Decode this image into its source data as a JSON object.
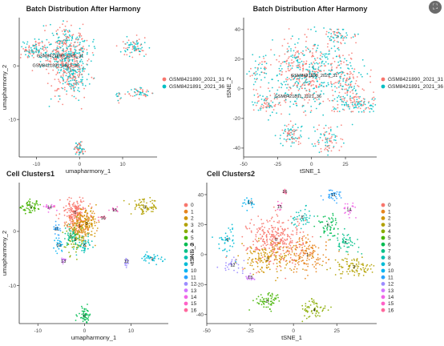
{
  "expand_button": {
    "icon": "expand-icon",
    "glyph": "⛶"
  },
  "chart_data": [
    {
      "type": "scatter",
      "title": "Batch Distribution After Harmony",
      "xlabel": "umapharmony_1",
      "ylabel": "umapharmony_2",
      "xlim": [
        -14,
        18
      ],
      "ylim": [
        -17,
        9
      ],
      "xticks": [
        -10,
        0,
        10
      ],
      "yticks": [
        0,
        -10
      ],
      "grid": false,
      "legend_position": "right",
      "annotations": [
        {
          "text": "GSM8421890_2021_31",
          "x": -4.5,
          "y": 1.6
        },
        {
          "text": "GSM8421891_2021_36",
          "x": -5.5,
          "y": -0.2
        }
      ],
      "series": [
        {
          "name": "GSM8421890_2021_31",
          "color": "#F8766D"
        },
        {
          "name": "GSM8421891_2021_36",
          "color": "#00BFC4"
        }
      ],
      "clusters": [
        {
          "x": -3,
          "y": 2.5,
          "sx": 2.6,
          "sy": 2.4,
          "n": 420
        },
        {
          "x": -2,
          "y": -2,
          "sx": 1.8,
          "sy": 2.0,
          "n": 200
        },
        {
          "x": -11,
          "y": 3,
          "sx": 1.6,
          "sy": 0.7,
          "n": 90
        },
        {
          "x": 13,
          "y": 3.5,
          "sx": 1.4,
          "sy": 0.9,
          "n": 80
        },
        {
          "x": 14,
          "y": -5,
          "sx": 1.5,
          "sy": 0.5,
          "n": 50
        },
        {
          "x": 9,
          "y": -5.5,
          "sx": 0.3,
          "sy": 0.6,
          "n": 14
        },
        {
          "x": 0,
          "y": -15.5,
          "sx": 0.7,
          "sy": 0.8,
          "n": 60
        }
      ]
    },
    {
      "type": "scatter",
      "title": "Batch Distribution After Harmony",
      "xlabel": "tSNE_1",
      "ylabel": "tSNE_2",
      "xlim": [
        -50,
        48
      ],
      "ylim": [
        -46,
        48
      ],
      "xticks": [
        -50,
        -25,
        0,
        25
      ],
      "yticks": [
        40,
        20,
        0,
        -20,
        -40
      ],
      "grid": false,
      "legend_position": "right",
      "annotations": [
        {
          "text": "GSM8421890_2021_31",
          "x": 2,
          "y": 8
        },
        {
          "text": "GSM8421891_2021_36",
          "x": -10,
          "y": -6
        }
      ],
      "series": [
        {
          "name": "GSM8421890_2021_31",
          "color": "#F8766D"
        },
        {
          "name": "GSM8421891_2021_36",
          "color": "#00BFC4"
        }
      ],
      "clusters": [
        {
          "x": -5,
          "y": 10,
          "sx": 13,
          "sy": 12,
          "n": 500
        },
        {
          "x": 25,
          "y": 5,
          "sx": 7,
          "sy": 10,
          "n": 180
        },
        {
          "x": 35,
          "y": -10,
          "sx": 7,
          "sy": 3,
          "n": 90
        },
        {
          "x": -35,
          "y": -10,
          "sx": 4,
          "sy": 3,
          "n": 60
        },
        {
          "x": -15,
          "y": -30,
          "sx": 5,
          "sy": 4,
          "n": 80
        },
        {
          "x": 12,
          "y": -35,
          "sx": 5,
          "sy": 5,
          "n": 80
        },
        {
          "x": 20,
          "y": 35,
          "sx": 5,
          "sy": 3,
          "n": 60
        },
        {
          "x": -40,
          "y": 10,
          "sx": 3,
          "sy": 5,
          "n": 40
        }
      ]
    },
    {
      "type": "scatter",
      "title": "Cell Clusters1",
      "xlabel": "umapharmony_1",
      "ylabel": "umapharmony_2",
      "xlim": [
        -14,
        18
      ],
      "ylim": [
        -17,
        9
      ],
      "xticks": [
        -10,
        0,
        10
      ],
      "yticks": [
        0,
        -10
      ],
      "grid": false,
      "legend_position": "right",
      "series": [
        {
          "name": "0",
          "color": "#F8766D",
          "x": -2,
          "y": 3.5,
          "sx": 1.6,
          "sy": 1.3,
          "n": 170,
          "label": "0"
        },
        {
          "name": "1",
          "color": "#E7851E",
          "x": -1,
          "y": 1,
          "sx": 1.5,
          "sy": 1.2,
          "n": 130,
          "label": "1"
        },
        {
          "name": "2",
          "color": "#D09400",
          "x": 0.5,
          "y": 1.5,
          "sx": 1.1,
          "sy": 1.2,
          "n": 100,
          "label": "2"
        },
        {
          "name": "3",
          "color": "#B2A100",
          "x": 13,
          "y": 4.5,
          "sx": 1.5,
          "sy": 0.7,
          "n": 70,
          "label": "3"
        },
        {
          "name": "4",
          "color": "#89AC00",
          "x": -2,
          "y": -1.5,
          "sx": 1.0,
          "sy": 1.4,
          "n": 70,
          "label": "4"
        },
        {
          "name": "5",
          "color": "#45B500",
          "x": -11.5,
          "y": 4.5,
          "sx": 1.3,
          "sy": 0.6,
          "n": 60,
          "label": "5"
        },
        {
          "name": "6",
          "color": "#00BC51",
          "x": 0,
          "y": -15.5,
          "sx": 0.7,
          "sy": 0.8,
          "n": 55,
          "label": "6"
        },
        {
          "name": "7",
          "color": "#00C087",
          "x": -3,
          "y": -1,
          "sx": 0.8,
          "sy": 0.8,
          "n": 40,
          "label": "7"
        },
        {
          "name": "8",
          "color": "#00C0B2",
          "x": 0,
          "y": -2.5,
          "sx": 0.7,
          "sy": 0.8,
          "n": 40,
          "label": "8"
        },
        {
          "name": "9",
          "color": "#00BCD6",
          "x": 14.5,
          "y": -5,
          "sx": 1.2,
          "sy": 0.4,
          "n": 35,
          "label": "9"
        },
        {
          "name": "10",
          "color": "#00B3F2",
          "x": -5.5,
          "y": -2.5,
          "sx": 0.4,
          "sy": 0.7,
          "n": 22,
          "label": "10"
        },
        {
          "name": "11",
          "color": "#29A3FF",
          "x": -6,
          "y": 0.5,
          "sx": 0.5,
          "sy": 0.5,
          "n": 20,
          "label": "11"
        },
        {
          "name": "12",
          "color": "#9C8DFF",
          "x": 9,
          "y": -5.5,
          "sx": 0.25,
          "sy": 0.5,
          "n": 14,
          "label": "12"
        },
        {
          "name": "13",
          "color": "#D277FF",
          "x": -4.5,
          "y": -5.5,
          "sx": 0.4,
          "sy": 0.4,
          "n": 14,
          "label": "13"
        },
        {
          "name": "14",
          "color": "#F166E8",
          "x": -7.5,
          "y": 4.5,
          "sx": 0.6,
          "sy": 0.3,
          "n": 16,
          "label": "14"
        },
        {
          "name": "15",
          "color": "#FF61C7",
          "x": 6.5,
          "y": 4,
          "sx": 0.5,
          "sy": 0.3,
          "n": 10,
          "label": "15"
        },
        {
          "name": "16",
          "color": "#FF689E",
          "x": 4,
          "y": 2.5,
          "sx": 0.4,
          "sy": 0.3,
          "n": 10,
          "label": "16"
        }
      ]
    },
    {
      "type": "scatter",
      "title": "Cell Clusters2",
      "xlabel": "tSNE_1",
      "ylabel": "tSNE_2",
      "xlim": [
        -50,
        48
      ],
      "ylim": [
        -46,
        48
      ],
      "xticks": [
        -50,
        -25,
        0,
        25
      ],
      "yticks": [
        40,
        20,
        0,
        -20,
        -40
      ],
      "grid": false,
      "legend_position": "right",
      "series": [
        {
          "name": "0",
          "color": "#F8766D",
          "x": -10,
          "y": 10,
          "sx": 8,
          "sy": 8,
          "n": 300,
          "label": "0"
        },
        {
          "name": "1",
          "color": "#E7851E",
          "x": 8,
          "y": 0,
          "sx": 6,
          "sy": 6,
          "n": 140,
          "label": "1"
        },
        {
          "name": "2",
          "color": "#D09400",
          "x": -15,
          "y": -3,
          "sx": 8,
          "sy": 5,
          "n": 150,
          "label": "2"
        },
        {
          "name": "3",
          "color": "#B2A100",
          "x": 35,
          "y": -8,
          "sx": 6,
          "sy": 3,
          "n": 90,
          "label": "3"
        },
        {
          "name": "4",
          "color": "#89AC00",
          "x": 12,
          "y": -37,
          "sx": 4,
          "sy": 4,
          "n": 60,
          "label": "4"
        },
        {
          "name": "5",
          "color": "#45B500",
          "x": -15,
          "y": -31,
          "sx": 4,
          "sy": 3,
          "n": 60,
          "label": "5"
        },
        {
          "name": "6",
          "color": "#00BC51",
          "x": 20,
          "y": 20,
          "sx": 3,
          "sy": 4,
          "n": 50,
          "label": "6"
        },
        {
          "name": "7",
          "color": "#00C087",
          "x": 30,
          "y": 8,
          "sx": 4,
          "sy": 3,
          "n": 50,
          "label": "7"
        },
        {
          "name": "8",
          "color": "#00C0B2",
          "x": 5,
          "y": 25,
          "sx": 3,
          "sy": 3,
          "n": 40,
          "label": "8"
        },
        {
          "name": "9",
          "color": "#00BCD6",
          "x": -38,
          "y": 10,
          "sx": 3,
          "sy": 5,
          "n": 40,
          "label": "9"
        },
        {
          "name": "10",
          "color": "#00B3F2",
          "x": -25,
          "y": 35,
          "sx": 2,
          "sy": 2,
          "n": 20,
          "label": "10"
        },
        {
          "name": "11",
          "color": "#29A3FF",
          "x": 23,
          "y": 40,
          "sx": 3,
          "sy": 2,
          "n": 35,
          "label": "11"
        },
        {
          "name": "12",
          "color": "#9C8DFF",
          "x": -35,
          "y": -7,
          "sx": 3,
          "sy": 2,
          "n": 30,
          "label": "12"
        },
        {
          "name": "13",
          "color": "#D277FF",
          "x": -25,
          "y": -15,
          "sx": 1.5,
          "sy": 1.5,
          "n": 16,
          "label": "13"
        },
        {
          "name": "14",
          "color": "#F166E8",
          "x": 32,
          "y": 30,
          "sx": 2,
          "sy": 2,
          "n": 20,
          "label": "14"
        },
        {
          "name": "15",
          "color": "#FF61C7",
          "x": -8,
          "y": 32,
          "sx": 1,
          "sy": 2,
          "n": 10,
          "label": "15"
        },
        {
          "name": "16",
          "color": "#FF689E",
          "x": -5,
          "y": 42,
          "sx": 1,
          "sy": 1,
          "n": 8,
          "label": "16"
        }
      ]
    }
  ]
}
